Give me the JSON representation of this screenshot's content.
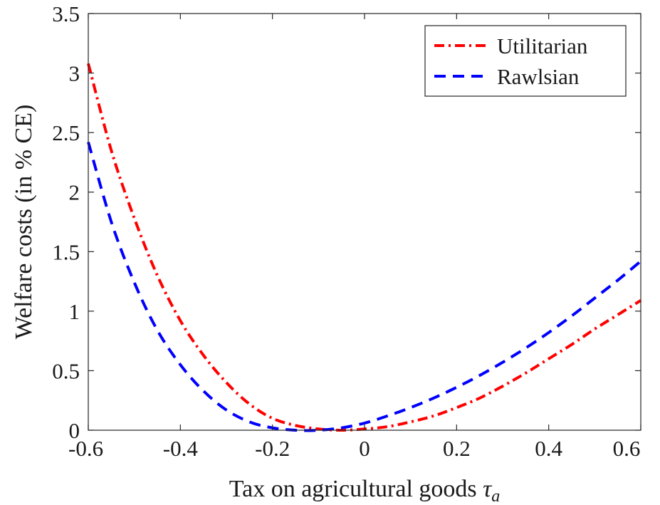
{
  "chart_data": {
    "type": "line",
    "title": "",
    "xlabel": "Tax on agricultural goods",
    "xlabel_symbol": "τ",
    "xlabel_subscript": "a",
    "ylabel": "Welfare costs (in % CE)",
    "xlim": [
      -0.6,
      0.6
    ],
    "ylim": [
      0,
      3.5
    ],
    "xticks": [
      -0.6,
      -0.4,
      -0.2,
      0,
      0.2,
      0.4,
      0.6
    ],
    "xtick_labels": [
      "-0.6",
      "-0.4",
      "-0.2",
      "0",
      "0.2",
      "0.4",
      "0.6"
    ],
    "yticks": [
      0,
      0.5,
      1,
      1.5,
      2,
      2.5,
      3,
      3.5
    ],
    "ytick_labels": [
      "0",
      "0.5",
      "1",
      "1.5",
      "2",
      "2.5",
      "3",
      "3.5"
    ],
    "grid": false,
    "legend_position": "top-right",
    "series": [
      {
        "name": "Utilitarian",
        "color": "#ff0000",
        "style": "dash-dot",
        "x": [
          -0.6,
          -0.55,
          -0.5,
          -0.45,
          -0.4,
          -0.35,
          -0.3,
          -0.25,
          -0.2,
          -0.15,
          -0.1,
          -0.05,
          0,
          0.05,
          0.1,
          0.15,
          0.2,
          0.25,
          0.3,
          0.35,
          0.4,
          0.45,
          0.5,
          0.55,
          0.6
        ],
        "y": [
          3.08,
          2.35,
          1.78,
          1.3,
          0.92,
          0.63,
          0.4,
          0.22,
          0.1,
          0.04,
          0.01,
          0.0,
          0.01,
          0.03,
          0.07,
          0.12,
          0.19,
          0.27,
          0.37,
          0.48,
          0.6,
          0.72,
          0.85,
          0.97,
          1.09
        ]
      },
      {
        "name": "Rawlsian",
        "color": "#0000ff",
        "style": "dashed",
        "x": [
          -0.6,
          -0.55,
          -0.5,
          -0.45,
          -0.4,
          -0.35,
          -0.3,
          -0.25,
          -0.2,
          -0.15,
          -0.1,
          -0.05,
          0,
          0.05,
          0.1,
          0.15,
          0.2,
          0.25,
          0.3,
          0.35,
          0.4,
          0.45,
          0.5,
          0.55,
          0.6
        ],
        "y": [
          2.42,
          1.75,
          1.24,
          0.84,
          0.55,
          0.33,
          0.17,
          0.07,
          0.02,
          0.0,
          0.0,
          0.02,
          0.06,
          0.12,
          0.19,
          0.27,
          0.36,
          0.46,
          0.57,
          0.69,
          0.82,
          0.96,
          1.11,
          1.26,
          1.42
        ]
      }
    ]
  }
}
